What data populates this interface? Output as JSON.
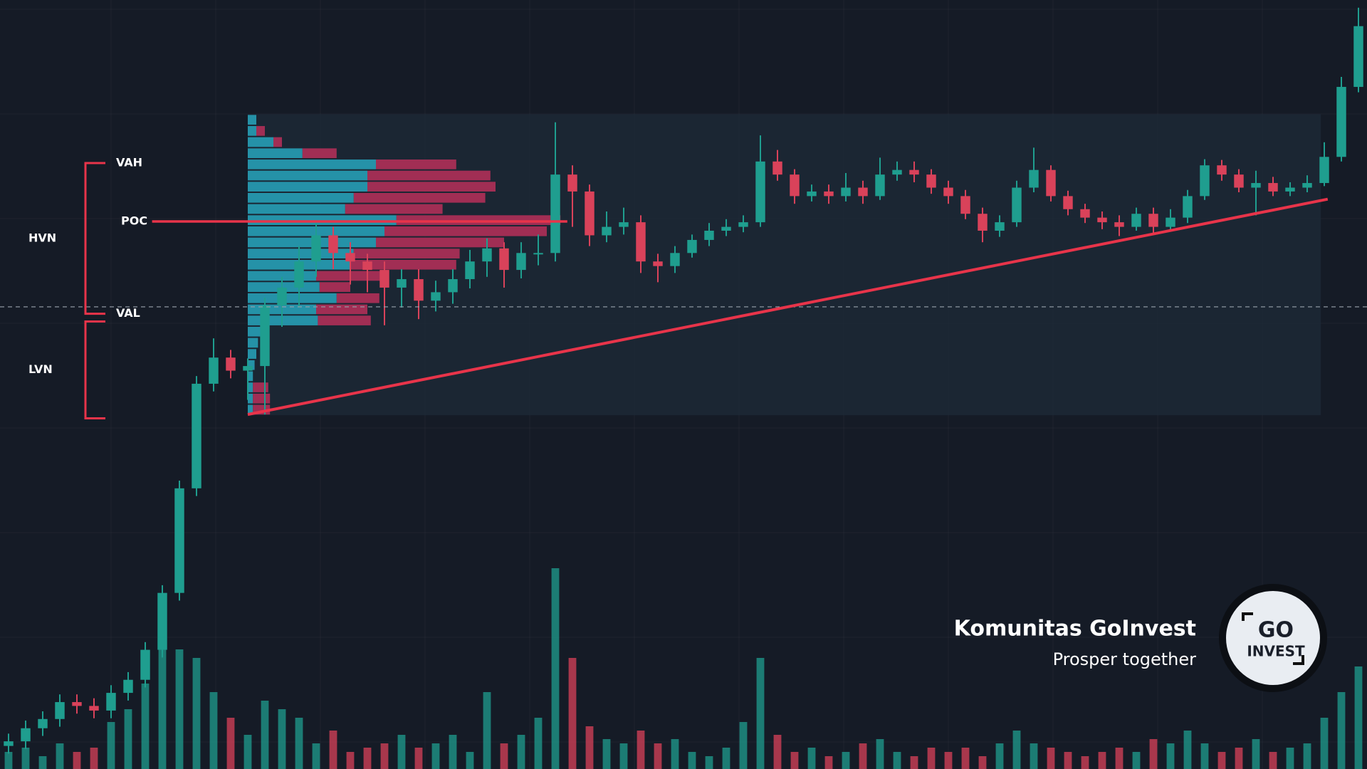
{
  "chart_data": {
    "type": "candlestick",
    "xlim": [
      -0.5,
      79.5
    ],
    "ylim": [
      0,
      100
    ],
    "y2lim": [
      0,
      900
    ],
    "grid": true,
    "colors": {
      "up": "#1f9e8f",
      "down": "#d9425a",
      "profile_up": "#27a6bd",
      "profile_down": "#b8305a",
      "trendline": "#e8344a",
      "box": "#1d2b38"
    },
    "open": [
      3.0,
      3.6,
      5.3,
      6.5,
      8.7,
      8.2,
      7.6,
      9.9,
      11.6,
      15.5,
      22.9,
      36.5,
      50.1,
      53.5,
      51.8,
      52.4,
      60.3,
      62.6,
      66.0,
      69.4,
      67.1,
      66.0,
      64.9,
      62.6,
      63.7,
      60.9,
      62.0,
      63.7,
      66.0,
      67.7,
      64.9,
      67.1,
      67.1,
      77.3,
      75.1,
      69.4,
      70.5,
      71.1,
      66.0,
      65.4,
      67.1,
      68.8,
      70.0,
      70.5,
      71.1,
      79.0,
      77.3,
      74.5,
      75.1,
      74.5,
      75.6,
      74.5,
      77.3,
      77.9,
      77.3,
      75.6,
      74.5,
      72.2,
      70.0,
      71.1,
      75.6,
      77.9,
      74.5,
      72.8,
      71.7,
      71.1,
      70.5,
      72.2,
      70.5,
      71.7,
      74.5,
      78.5,
      77.3,
      75.6,
      76.2,
      75.1,
      75.6,
      76.2,
      79.6,
      88.7
    ],
    "high": [
      4.6,
      6.3,
      7.5,
      9.7,
      9.7,
      9.2,
      10.9,
      12.6,
      16.5,
      23.9,
      37.5,
      51.1,
      56.0,
      54.5,
      53.4,
      61.3,
      64.0,
      68.0,
      71.0,
      70.5,
      68.5,
      67.0,
      66.0,
      65.0,
      65.0,
      63.5,
      65.0,
      67.5,
      69.0,
      68.5,
      68.5,
      69.5,
      84.1,
      78.5,
      76.0,
      72.5,
      73.0,
      72.0,
      67.0,
      68.0,
      69.5,
      71.0,
      71.5,
      72.0,
      82.4,
      80.5,
      78.0,
      76.0,
      76.0,
      77.5,
      76.5,
      79.5,
      79.0,
      79.0,
      78.0,
      76.5,
      75.3,
      73.0,
      72.0,
      76.5,
      80.8,
      78.5,
      75.2,
      73.5,
      72.5,
      72.0,
      73.0,
      73.0,
      72.8,
      75.3,
      79.3,
      79.2,
      78.0,
      77.8,
      77.0,
      76.3,
      77.2,
      81.5,
      90.0,
      99.0
    ],
    "low": [
      2.0,
      2.6,
      4.3,
      5.5,
      7.2,
      6.6,
      6.6,
      8.9,
      10.6,
      14.5,
      21.9,
      35.5,
      49.1,
      50.8,
      48.0,
      46.1,
      57.5,
      60.0,
      64.0,
      65.0,
      63.0,
      62.0,
      57.7,
      60.0,
      58.5,
      59.5,
      60.5,
      62.5,
      64.0,
      62.6,
      63.8,
      65.5,
      66.0,
      70.5,
      68.0,
      68.5,
      69.5,
      64.5,
      63.3,
      64.5,
      66.5,
      68.0,
      69.3,
      69.8,
      70.5,
      76.5,
      73.5,
      73.8,
      73.5,
      73.8,
      73.5,
      74.0,
      76.5,
      76.3,
      74.8,
      73.5,
      71.5,
      68.5,
      69.2,
      70.5,
      75.0,
      73.8,
      72.0,
      71.0,
      70.2,
      69.3,
      70.0,
      69.5,
      70.0,
      71.0,
      74.0,
      76.5,
      75.0,
      72.0,
      74.5,
      74.5,
      75.0,
      75.8,
      79.0,
      88.0
    ],
    "close": [
      3.6,
      5.3,
      6.5,
      8.7,
      8.2,
      7.6,
      9.9,
      11.6,
      15.5,
      22.9,
      36.5,
      50.1,
      53.5,
      51.8,
      52.4,
      60.3,
      62.6,
      66.0,
      69.4,
      67.1,
      66.0,
      64.9,
      62.6,
      63.7,
      60.9,
      62.0,
      63.7,
      66.0,
      67.7,
      64.9,
      67.1,
      67.1,
      77.3,
      75.1,
      69.4,
      70.5,
      71.1,
      66.0,
      65.4,
      67.1,
      68.8,
      70.0,
      70.5,
      71.1,
      79.0,
      77.3,
      74.5,
      75.1,
      74.5,
      75.6,
      74.5,
      77.3,
      77.9,
      77.3,
      75.6,
      74.5,
      72.2,
      70.0,
      71.1,
      75.6,
      77.9,
      74.5,
      72.8,
      71.7,
      71.1,
      70.5,
      72.2,
      70.5,
      71.7,
      74.5,
      78.5,
      77.3,
      75.6,
      76.2,
      75.1,
      75.6,
      76.2,
      79.6,
      88.7,
      96.6
    ],
    "volume": [
      20,
      25,
      15,
      30,
      20,
      25,
      55,
      70,
      100,
      150,
      140,
      130,
      90,
      60,
      40,
      80,
      70,
      60,
      30,
      45,
      20,
      25,
      30,
      40,
      25,
      30,
      40,
      20,
      90,
      30,
      40,
      60,
      235,
      130,
      50,
      35,
      30,
      45,
      30,
      35,
      20,
      15,
      25,
      55,
      130,
      40,
      20,
      25,
      15,
      20,
      30,
      35,
      20,
      15,
      25,
      20,
      25,
      15,
      30,
      45,
      30,
      25,
      20,
      15,
      20,
      25,
      20,
      35,
      30,
      45,
      30,
      20,
      25,
      35,
      20,
      25,
      30,
      60,
      90,
      120
    ],
    "profile": {
      "x_start": 14,
      "xlim": [
        0,
        800
      ],
      "bins": [
        46.0,
        47.45,
        48.9,
        50.35,
        51.8,
        53.25,
        54.7,
        56.15,
        57.6,
        59.05,
        60.5,
        61.95,
        63.4,
        64.85,
        66.3,
        67.75,
        69.2,
        70.65,
        72.1,
        73.55,
        75.0,
        76.45,
        77.9,
        79.35,
        80.8,
        82.25,
        83.7,
        85.15
      ],
      "up": [
        3,
        3,
        3,
        3,
        4,
        5,
        6,
        8,
        41,
        40,
        52,
        42,
        40,
        60,
        62,
        75,
        80,
        87,
        57,
        62,
        70,
        70,
        75,
        32,
        15,
        5,
        5
      ],
      "down": [
        10,
        10,
        9,
        0,
        0,
        0,
        0,
        0,
        31,
        30,
        25,
        18,
        38,
        62,
        62,
        75,
        95,
        96,
        57,
        77,
        75,
        72,
        47,
        20,
        5,
        5,
        0
      ]
    },
    "range_box": {
      "x": [
        14,
        76.8
      ],
      "y": [
        46.0,
        85.15
      ]
    },
    "trendline": {
      "x": [
        14,
        77.2
      ],
      "y": [
        46.1,
        74.1
      ]
    },
    "reference_line": 60.1,
    "poc_line": {
      "x": [
        8.4,
        32.7
      ],
      "y": 71.2
    },
    "annotations": [
      {
        "label": "VAH",
        "value": 78.8
      },
      {
        "label": "POC",
        "value": 71.2
      },
      {
        "label": "VAL",
        "value": 59.2
      }
    ],
    "zones": [
      {
        "label": "HVN",
        "range": [
          59.2,
          78.8
        ]
      },
      {
        "label": "LVN",
        "range": [
          45.6,
          58.2
        ]
      }
    ]
  },
  "watermark": {
    "title": "Komunitas GoInvest",
    "subtitle": "Prosper together",
    "logo_top": "GO",
    "logo_bottom": "INVEST"
  }
}
